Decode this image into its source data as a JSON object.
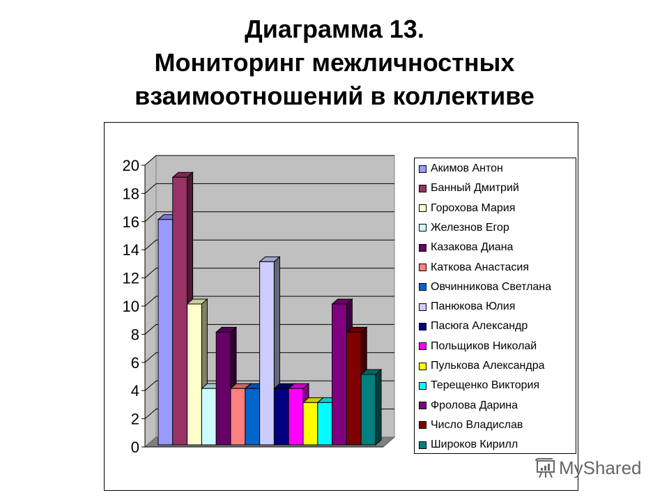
{
  "title": {
    "line1": "Диаграмма 13.",
    "line2": "Мониторинг межличностных",
    "line3": "взаимоотношений в коллективе"
  },
  "watermark": {
    "text": "MyShared",
    "icon": "presentation-chart-icon"
  },
  "chart_data": {
    "type": "bar",
    "style": "3d-clustered-column",
    "title": "Диаграмма 13. Мониторинг межличностных взаимоотношений в коллективе",
    "xlabel": "",
    "ylabel": "",
    "ylim": [
      0,
      20
    ],
    "yticks": [
      "0",
      "2",
      "4",
      "6",
      "8",
      "10",
      "12",
      "14",
      "16",
      "18",
      "20"
    ],
    "grid": true,
    "legend_position": "right",
    "categories": [
      ""
    ],
    "series": [
      {
        "name": "Акимов Антон",
        "values": [
          16
        ],
        "color": "#9999ff"
      },
      {
        "name": "Банный Дмитрий",
        "values": [
          19
        ],
        "color": "#993366"
      },
      {
        "name": "Горохова Мария",
        "values": [
          10
        ],
        "color": "#ffffcc"
      },
      {
        "name": "Железнов Егор",
        "values": [
          4
        ],
        "color": "#ccffff"
      },
      {
        "name": "Казакова Диана",
        "values": [
          8
        ],
        "color": "#660066"
      },
      {
        "name": "Каткова Анастасия",
        "values": [
          4
        ],
        "color": "#ff8080"
      },
      {
        "name": "Овчинникова Светлана",
        "values": [
          4
        ],
        "color": "#0066cc"
      },
      {
        "name": "Панюкова Юлия",
        "values": [
          13
        ],
        "color": "#ccccff"
      },
      {
        "name": "Пасюга Александр",
        "values": [
          4
        ],
        "color": "#000080"
      },
      {
        "name": "Польщиков Николай",
        "values": [
          4
        ],
        "color": "#ff00ff"
      },
      {
        "name": "Пулькова Александра",
        "values": [
          3
        ],
        "color": "#ffff00"
      },
      {
        "name": "Терещенко Виктория",
        "values": [
          3
        ],
        "color": "#00ffff"
      },
      {
        "name": "Фролова Дарина",
        "values": [
          10
        ],
        "color": "#800080"
      },
      {
        "name": "Число Владислав",
        "values": [
          8
        ],
        "color": "#800000"
      },
      {
        "name": "Широков Кирилл",
        "values": [
          5
        ],
        "color": "#008080"
      }
    ]
  }
}
